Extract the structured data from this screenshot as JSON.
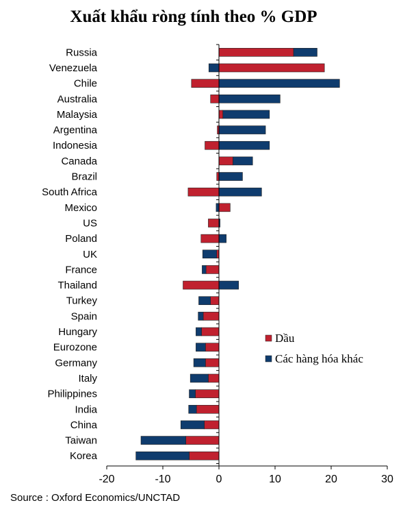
{
  "chart_data": {
    "type": "bar",
    "orientation": "horizontal",
    "stacked": true,
    "title": "Xuất khẩu ròng tính theo % GDP",
    "source": "Source : Oxford Economics/UNCTAD",
    "categories": [
      "Russia",
      "Venezuela",
      "Chile",
      "Australia",
      "Malaysia",
      "Argentina",
      "Indonesia",
      "Canada",
      "Brazil",
      "South Africa",
      "Mexico",
      "US",
      "Poland",
      "UK",
      "France",
      "Thailand",
      "Turkey",
      "Spain",
      "Hungary",
      "Eurozone",
      "Germany",
      "Italy",
      "Philippines",
      "India",
      "China",
      "Taiwan",
      "Korea"
    ],
    "series": [
      {
        "name": "Dầu",
        "color": "#c0212f",
        "values": [
          13.3,
          18.8,
          -4.9,
          -1.5,
          0.7,
          -0.3,
          -2.5,
          2.5,
          -0.4,
          -5.5,
          2.0,
          -1.9,
          -3.2,
          -0.4,
          -2.3,
          -6.4,
          -1.5,
          -2.8,
          -3.1,
          -2.4,
          -2.4,
          -1.9,
          -4.2,
          -4.0,
          -2.6,
          -5.9,
          -5.3
        ]
      },
      {
        "name": "Các hàng hóa khác",
        "color": "#0f3c6e",
        "values": [
          4.2,
          -1.8,
          21.5,
          10.9,
          8.3,
          8.3,
          9.0,
          3.5,
          4.2,
          7.6,
          -0.5,
          0.2,
          1.3,
          -2.5,
          -0.7,
          3.5,
          -2.1,
          -0.9,
          -1.0,
          -1.7,
          -2.1,
          -3.2,
          -1.1,
          -1.4,
          -4.2,
          -8.0,
          -9.5
        ]
      }
    ],
    "xlim": [
      -20,
      30
    ],
    "xticks": [
      -20,
      -10,
      0,
      10,
      20,
      30
    ],
    "xticklabels": [
      "-20",
      "-10",
      "0",
      "10",
      "20",
      "30"
    ],
    "legend_position": "center-right"
  }
}
